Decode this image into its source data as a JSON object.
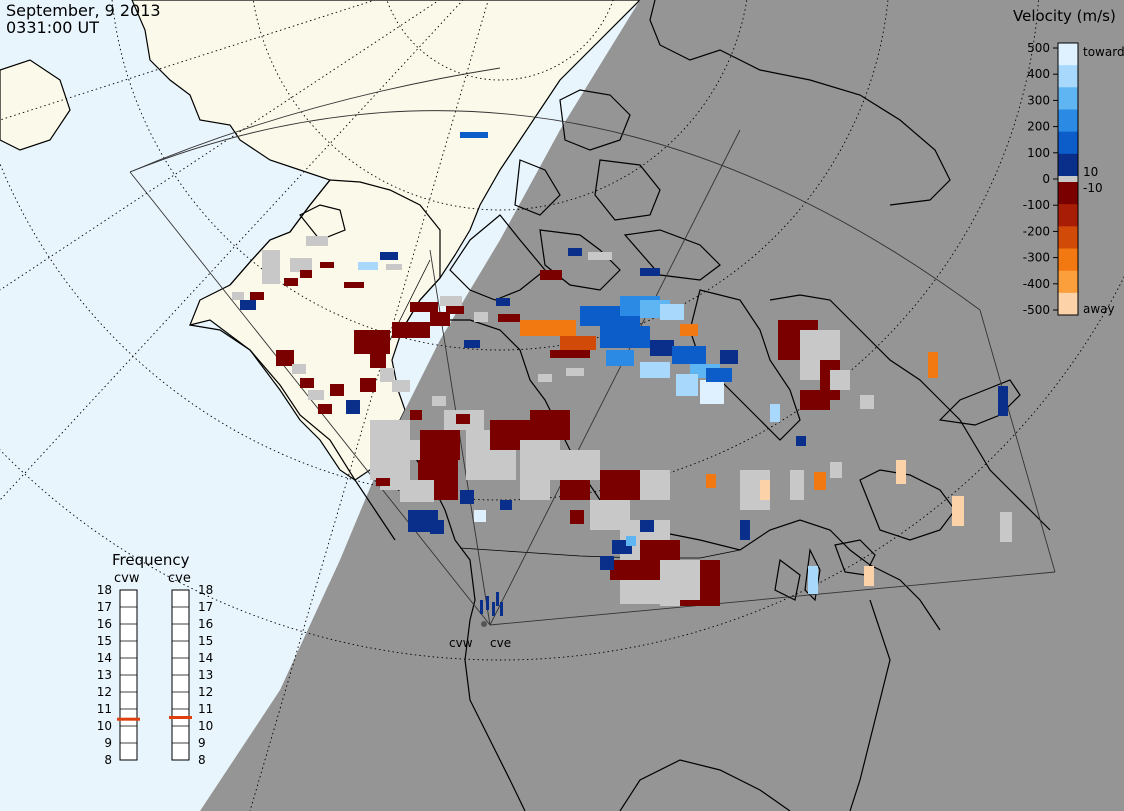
{
  "header": {
    "date": "September, 9 2013",
    "time": "0331:00 UT"
  },
  "colorbar": {
    "title": "Velocity (m/s)",
    "ticks": [
      "500",
      "400",
      "300",
      "200",
      "100",
      "0",
      "-100",
      "-200",
      "-300",
      "-400",
      "-500"
    ],
    "tick_values": [
      500,
      400,
      300,
      200,
      100,
      0,
      -100,
      -200,
      -300,
      -400,
      -500
    ],
    "label_toward": "toward",
    "label_away": "away",
    "label_pos_threshold": "10",
    "label_neg_threshold": "-10",
    "colors_toward": [
      "#dff0ff",
      "#a8d8fb",
      "#5fb4f2",
      "#2b8ae4",
      "#0c5cc9",
      "#0a2f8a"
    ],
    "colors_away": [
      "#7a0000",
      "#a81d05",
      "#d24a08",
      "#f27812",
      "#fb9e3c",
      "#fcd2a8"
    ],
    "ground_scatter_color": "#c8c8c8"
  },
  "frequency_panel": {
    "title": "Frequency",
    "radars": [
      {
        "name": "cvw",
        "frequency_mhz": 10.4
      },
      {
        "name": "cve",
        "frequency_mhz": 10.5
      }
    ],
    "scale": [
      "18",
      "17",
      "16",
      "15",
      "14",
      "13",
      "12",
      "11",
      "10",
      "9",
      "8"
    ],
    "scale_values": [
      18,
      17,
      16,
      15,
      14,
      13,
      12,
      11,
      10,
      9,
      8
    ],
    "marker_color": "#e04010"
  },
  "map": {
    "radar_labels": [
      "cvw",
      "cve"
    ],
    "colors": {
      "ocean_day": "#e9f5fd",
      "land_day": "#fbf9e9",
      "night_side": "#959595",
      "coastline": "#000000"
    }
  }
}
